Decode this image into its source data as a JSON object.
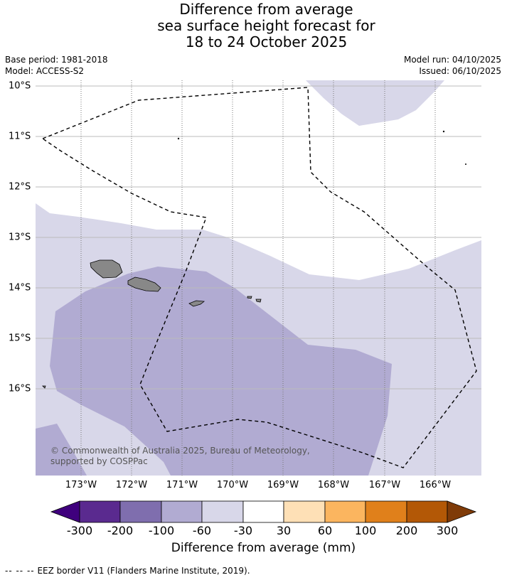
{
  "title": {
    "line1": "Difference from average",
    "line2": "sea surface height forecast for",
    "line3": "18 to 24 October 2025"
  },
  "meta": {
    "base_period": "Base period: 1981-2018",
    "model": "Model: ACCESS-S2",
    "model_run": "Model run: 04/10/2025",
    "issued": "Issued: 06/10/2025"
  },
  "map": {
    "lat_labels": [
      "10°S",
      "11°S",
      "12°S",
      "13°S",
      "14°S",
      "15°S",
      "16°S"
    ],
    "lon_labels": [
      "173°W",
      "172°W",
      "171°W",
      "170°W",
      "169°W",
      "168°W",
      "167°W",
      "166°W"
    ],
    "copyright": "© Commonwealth of Australia 2025, Bureau of Meteorology, supported by COSPPac",
    "colors": {
      "band_minus60_minus30": "#d8d7e9",
      "band_minus100_minus60": "#b1abd2",
      "land": "#888888"
    }
  },
  "colorbar": {
    "title": "Difference from average (mm)",
    "ticks": [
      "-300",
      "-200",
      "-100",
      "-60",
      "-30",
      "30",
      "60",
      "100",
      "200",
      "300"
    ],
    "colors": [
      "#3f007d",
      "#5a2a8f",
      "#7f6eae",
      "#b1abd2",
      "#d8d7e9",
      "#ffffff",
      "#fee0b6",
      "#fbb55f",
      "#e0801b",
      "#b35806",
      "#7f3b08"
    ]
  },
  "footer": {
    "dash": "-- -- --",
    "text": "EEZ border V11 (Flanders Marine Institute, 2019)."
  }
}
